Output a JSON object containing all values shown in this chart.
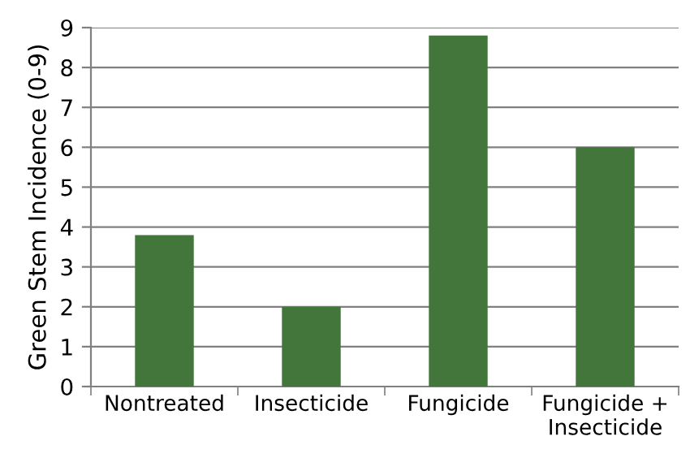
{
  "chart_data": {
    "type": "bar",
    "ylabel": "Green Stem Incidence (0-9)",
    "categories": [
      "Nontreated",
      "Insecticide",
      "Fungicide",
      "Fungicide +\nInsecticide"
    ],
    "values": [
      3.8,
      2.0,
      8.8,
      6.0
    ],
    "color": "#42763a",
    "ylim": [
      0,
      9
    ],
    "yticks": [
      0,
      1,
      2,
      3,
      4,
      5,
      6,
      7,
      8,
      9
    ],
    "grid": "y",
    "legend": false
  }
}
